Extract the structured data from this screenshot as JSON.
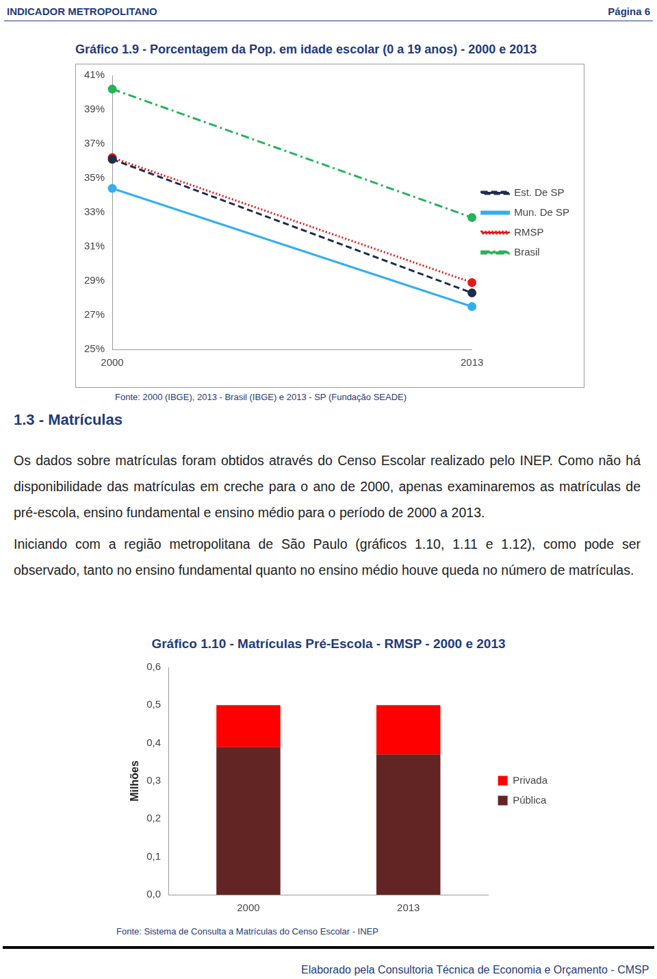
{
  "header": {
    "left": "INDICADOR METROPOLITANO",
    "right": "Página 6"
  },
  "chart_data": [
    {
      "type": "line",
      "title": "Gráfico 1.9 - Porcentagem da Pop. em idade escolar (0 a 19 anos) - 2000 e 2013",
      "categories": [
        "2000",
        "2013"
      ],
      "series": [
        {
          "name": "Est. De SP",
          "color": "#1f2d4a",
          "line_style": "dashed",
          "marker": "circle",
          "values": [
            36.1,
            28.3
          ]
        },
        {
          "name": "Mun. De SP",
          "color": "#33aef0",
          "line_style": "solid",
          "marker": "circle",
          "values": [
            34.4,
            27.5
          ]
        },
        {
          "name": "RMSP",
          "color": "#e31a1c",
          "line_style": "dotted",
          "marker": "circle",
          "values": [
            36.2,
            28.9
          ]
        },
        {
          "name": "Brasil",
          "color": "#27b35a",
          "line_style": "dashdot",
          "marker": "circle",
          "values": [
            40.2,
            32.7
          ]
        }
      ],
      "ylim": [
        25,
        41
      ],
      "yticks": [
        {
          "value": 25,
          "label": "25%"
        },
        {
          "value": 27,
          "label": "27%"
        },
        {
          "value": 29,
          "label": "29%"
        },
        {
          "value": 31,
          "label": "31%"
        },
        {
          "value": 33,
          "label": "33%"
        },
        {
          "value": 35,
          "label": "35%"
        },
        {
          "value": 37,
          "label": "37%"
        },
        {
          "value": 39,
          "label": "39%"
        },
        {
          "value": 41,
          "label": "41%"
        }
      ],
      "grid": false,
      "legend": "right",
      "source": "Fonte: 2000 (IBGE), 2013 - Brasil (IBGE) e 2013 - SP (Fundação SEADE)"
    },
    {
      "type": "bar",
      "title": "Gráfico 1.10 - Matrículas Pré-Escola - RMSP - 2000 e 2013",
      "ylabel": "Milhões",
      "categories": [
        "2000",
        "2013"
      ],
      "series": [
        {
          "name": "Pública",
          "color": "#632523",
          "values": [
            0.39,
            0.37
          ]
        },
        {
          "name": "Privada",
          "color": "#ff0000",
          "values": [
            0.11,
            0.13
          ]
        }
      ],
      "stacked": true,
      "ylim": [
        0,
        0.6
      ],
      "yticks": [
        {
          "value": 0,
          "label": "0,0"
        },
        {
          "value": 0.1,
          "label": "0,1"
        },
        {
          "value": 0.2,
          "label": "0,2"
        },
        {
          "value": 0.3,
          "label": "0,3"
        },
        {
          "value": 0.4,
          "label": "0,4"
        },
        {
          "value": 0.5,
          "label": "0,5"
        },
        {
          "value": 0.6,
          "label": "0,6"
        }
      ],
      "grid": false,
      "legend": "right",
      "source": "Fonte: Sistema de Consulta a Matrículas do Censo Escolar - INEP"
    }
  ],
  "section_title": "1.3 - Matrículas",
  "paragraphs": [
    "Os dados sobre matrículas foram obtidos através do Censo Escolar realizado pelo INEP. Como não há disponibilidade das matrículas em creche para o ano de 2000, apenas examinaremos as matrículas de pré-escola, ensino fundamental e ensino médio para o período de 2000 a 2013.",
    "Iniciando com a região metropolitana de São Paulo (gráficos 1.10, 1.11 e 1.12), como pode ser observado, tanto no ensino fundamental quanto no ensino médio houve queda no número de matrículas."
  ],
  "footer": "Elaborado pela Consultoria Técnica de Economia e Orçamento - CMSP"
}
